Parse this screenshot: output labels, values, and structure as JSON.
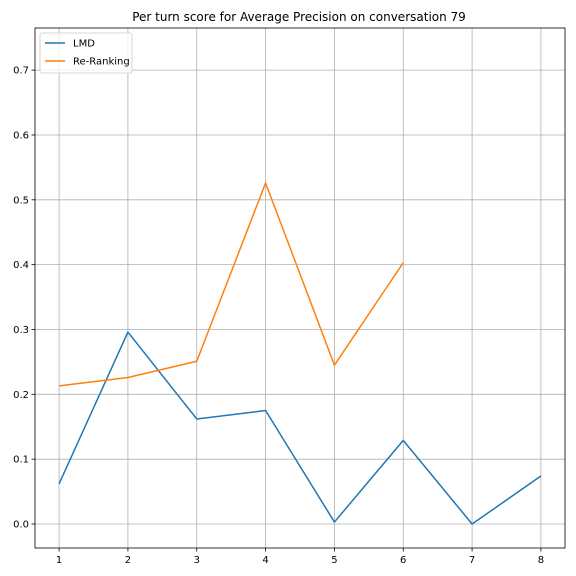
{
  "chart_data": {
    "type": "line",
    "title": "Per turn score for Average Precision on conversation 79",
    "xlabel": "",
    "ylabel": "",
    "xlim": [
      0.65,
      8.35
    ],
    "ylim": [
      -0.037,
      0.765
    ],
    "grid": true,
    "legend_position": "top-left",
    "x_ticks": [
      1,
      2,
      3,
      4,
      5,
      6,
      7,
      8
    ],
    "y_ticks": [
      0.0,
      0.1,
      0.2,
      0.3,
      0.4,
      0.5,
      0.6,
      0.7
    ],
    "series": [
      {
        "name": "LMD",
        "color": "#1f77b4",
        "x": [
          1,
          2,
          3,
          4,
          5,
          6,
          7,
          8
        ],
        "y": [
          0.062,
          0.296,
          0.162,
          0.175,
          0.003,
          0.129,
          0.0,
          0.074
        ]
      },
      {
        "name": "Re-Ranking",
        "color": "#ff7f0e",
        "x": [
          1,
          2,
          3,
          4,
          5,
          6
        ],
        "y": [
          0.213,
          0.226,
          0.251,
          0.526,
          0.245,
          0.403
        ]
      }
    ]
  }
}
